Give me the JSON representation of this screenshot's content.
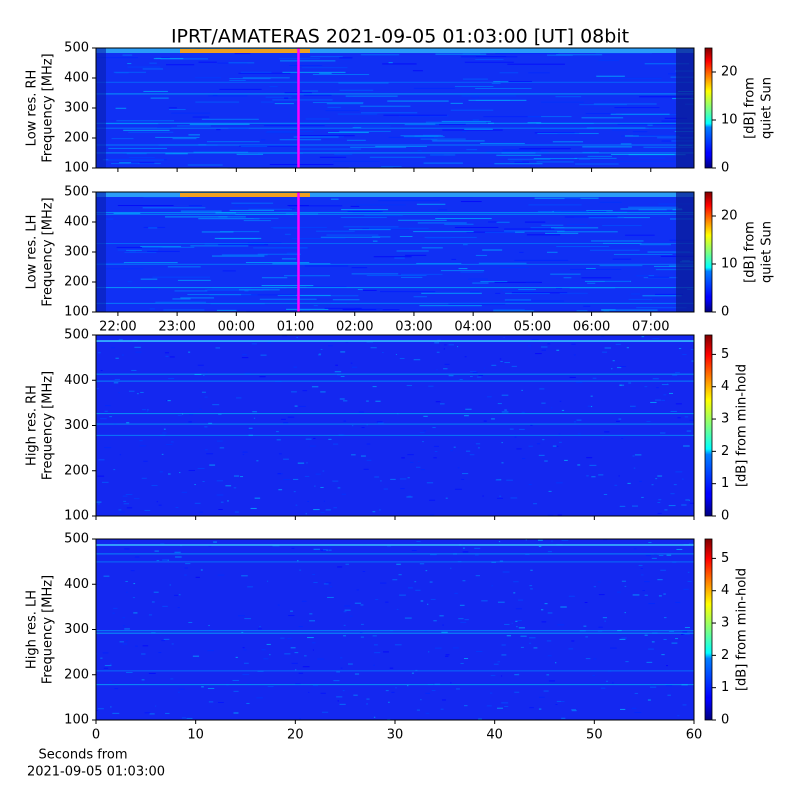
{
  "title": "IPRT/AMATERAS 2021-09-05 01:03:00 [UT]   08bit",
  "xlabel": [
    "Seconds from",
    "2021-09-05 01:03:00"
  ],
  "chart_data": [
    {
      "type": "heatmap",
      "ylabel": [
        "Low res. RH",
        "Frequency [MHz]"
      ],
      "colormap": "jet",
      "xlim": [
        21.63,
        31.73
      ],
      "xticks": [
        {
          "value": 22,
          "label": "22:00"
        },
        {
          "value": 23,
          "label": "23:00"
        },
        {
          "value": 24,
          "label": "00:00"
        },
        {
          "value": 25,
          "label": "01:00"
        },
        {
          "value": 26,
          "label": "02:00"
        },
        {
          "value": 27,
          "label": "03:00"
        },
        {
          "value": 28,
          "label": "04:00"
        },
        {
          "value": 29,
          "label": "05:00"
        },
        {
          "value": 30,
          "label": "06:00"
        },
        {
          "value": 31,
          "label": "07:00"
        }
      ],
      "show_xtick_labels": false,
      "ylim": [
        100,
        500
      ],
      "yticks": [
        100,
        200,
        300,
        400,
        500
      ],
      "marker_x": 25.05,
      "marker_color": "#ff00ff",
      "colorbar": {
        "label": [
          "[dB] from",
          "quiet Sun"
        ],
        "lim": [
          0,
          25
        ],
        "ticks": [
          0,
          10,
          20
        ]
      }
    },
    {
      "type": "heatmap",
      "ylabel": [
        "Low res. LH",
        "Frequency [MHz]"
      ],
      "colormap": "jet",
      "xlim": [
        21.63,
        31.73
      ],
      "xticks": [
        {
          "value": 22,
          "label": "22:00"
        },
        {
          "value": 23,
          "label": "23:00"
        },
        {
          "value": 24,
          "label": "00:00"
        },
        {
          "value": 25,
          "label": "01:00"
        },
        {
          "value": 26,
          "label": "02:00"
        },
        {
          "value": 27,
          "label": "03:00"
        },
        {
          "value": 28,
          "label": "04:00"
        },
        {
          "value": 29,
          "label": "05:00"
        },
        {
          "value": 30,
          "label": "06:00"
        },
        {
          "value": 31,
          "label": "07:00"
        }
      ],
      "show_xtick_labels": true,
      "ylim": [
        100,
        500
      ],
      "yticks": [
        100,
        200,
        300,
        400,
        500
      ],
      "marker_x": 25.05,
      "marker_color": "#ff00ff",
      "colorbar": {
        "label": [
          "[dB] from",
          "quiet Sun"
        ],
        "lim": [
          0,
          25
        ],
        "ticks": [
          0,
          10,
          20
        ]
      }
    },
    {
      "type": "heatmap",
      "ylabel": [
        "High res. RH",
        "Frequency [MHz]"
      ],
      "colormap": "jet",
      "xlim": [
        0,
        60
      ],
      "xticks": [
        0,
        10,
        20,
        30,
        40,
        50,
        60
      ],
      "show_xtick_labels": false,
      "ylim": [
        100,
        500
      ],
      "yticks": [
        100,
        200,
        300,
        400,
        500
      ],
      "colorbar": {
        "label": [
          "[dB] from min-hold"
        ],
        "lim": [
          0,
          5.6
        ],
        "ticks": [
          0,
          1,
          2,
          3,
          4,
          5
        ]
      }
    },
    {
      "type": "heatmap",
      "ylabel": [
        "High res. LH",
        "Frequency [MHz]"
      ],
      "colormap": "jet",
      "xlim": [
        0,
        60
      ],
      "xticks": [
        0,
        10,
        20,
        30,
        40,
        50,
        60
      ],
      "show_xtick_labels": true,
      "ylim": [
        100,
        500
      ],
      "yticks": [
        100,
        200,
        300,
        400,
        500
      ],
      "colorbar": {
        "label": [
          "[dB] from min-hold"
        ],
        "lim": [
          0,
          5.6
        ],
        "ticks": [
          0,
          1,
          2,
          3,
          4,
          5
        ]
      }
    }
  ]
}
